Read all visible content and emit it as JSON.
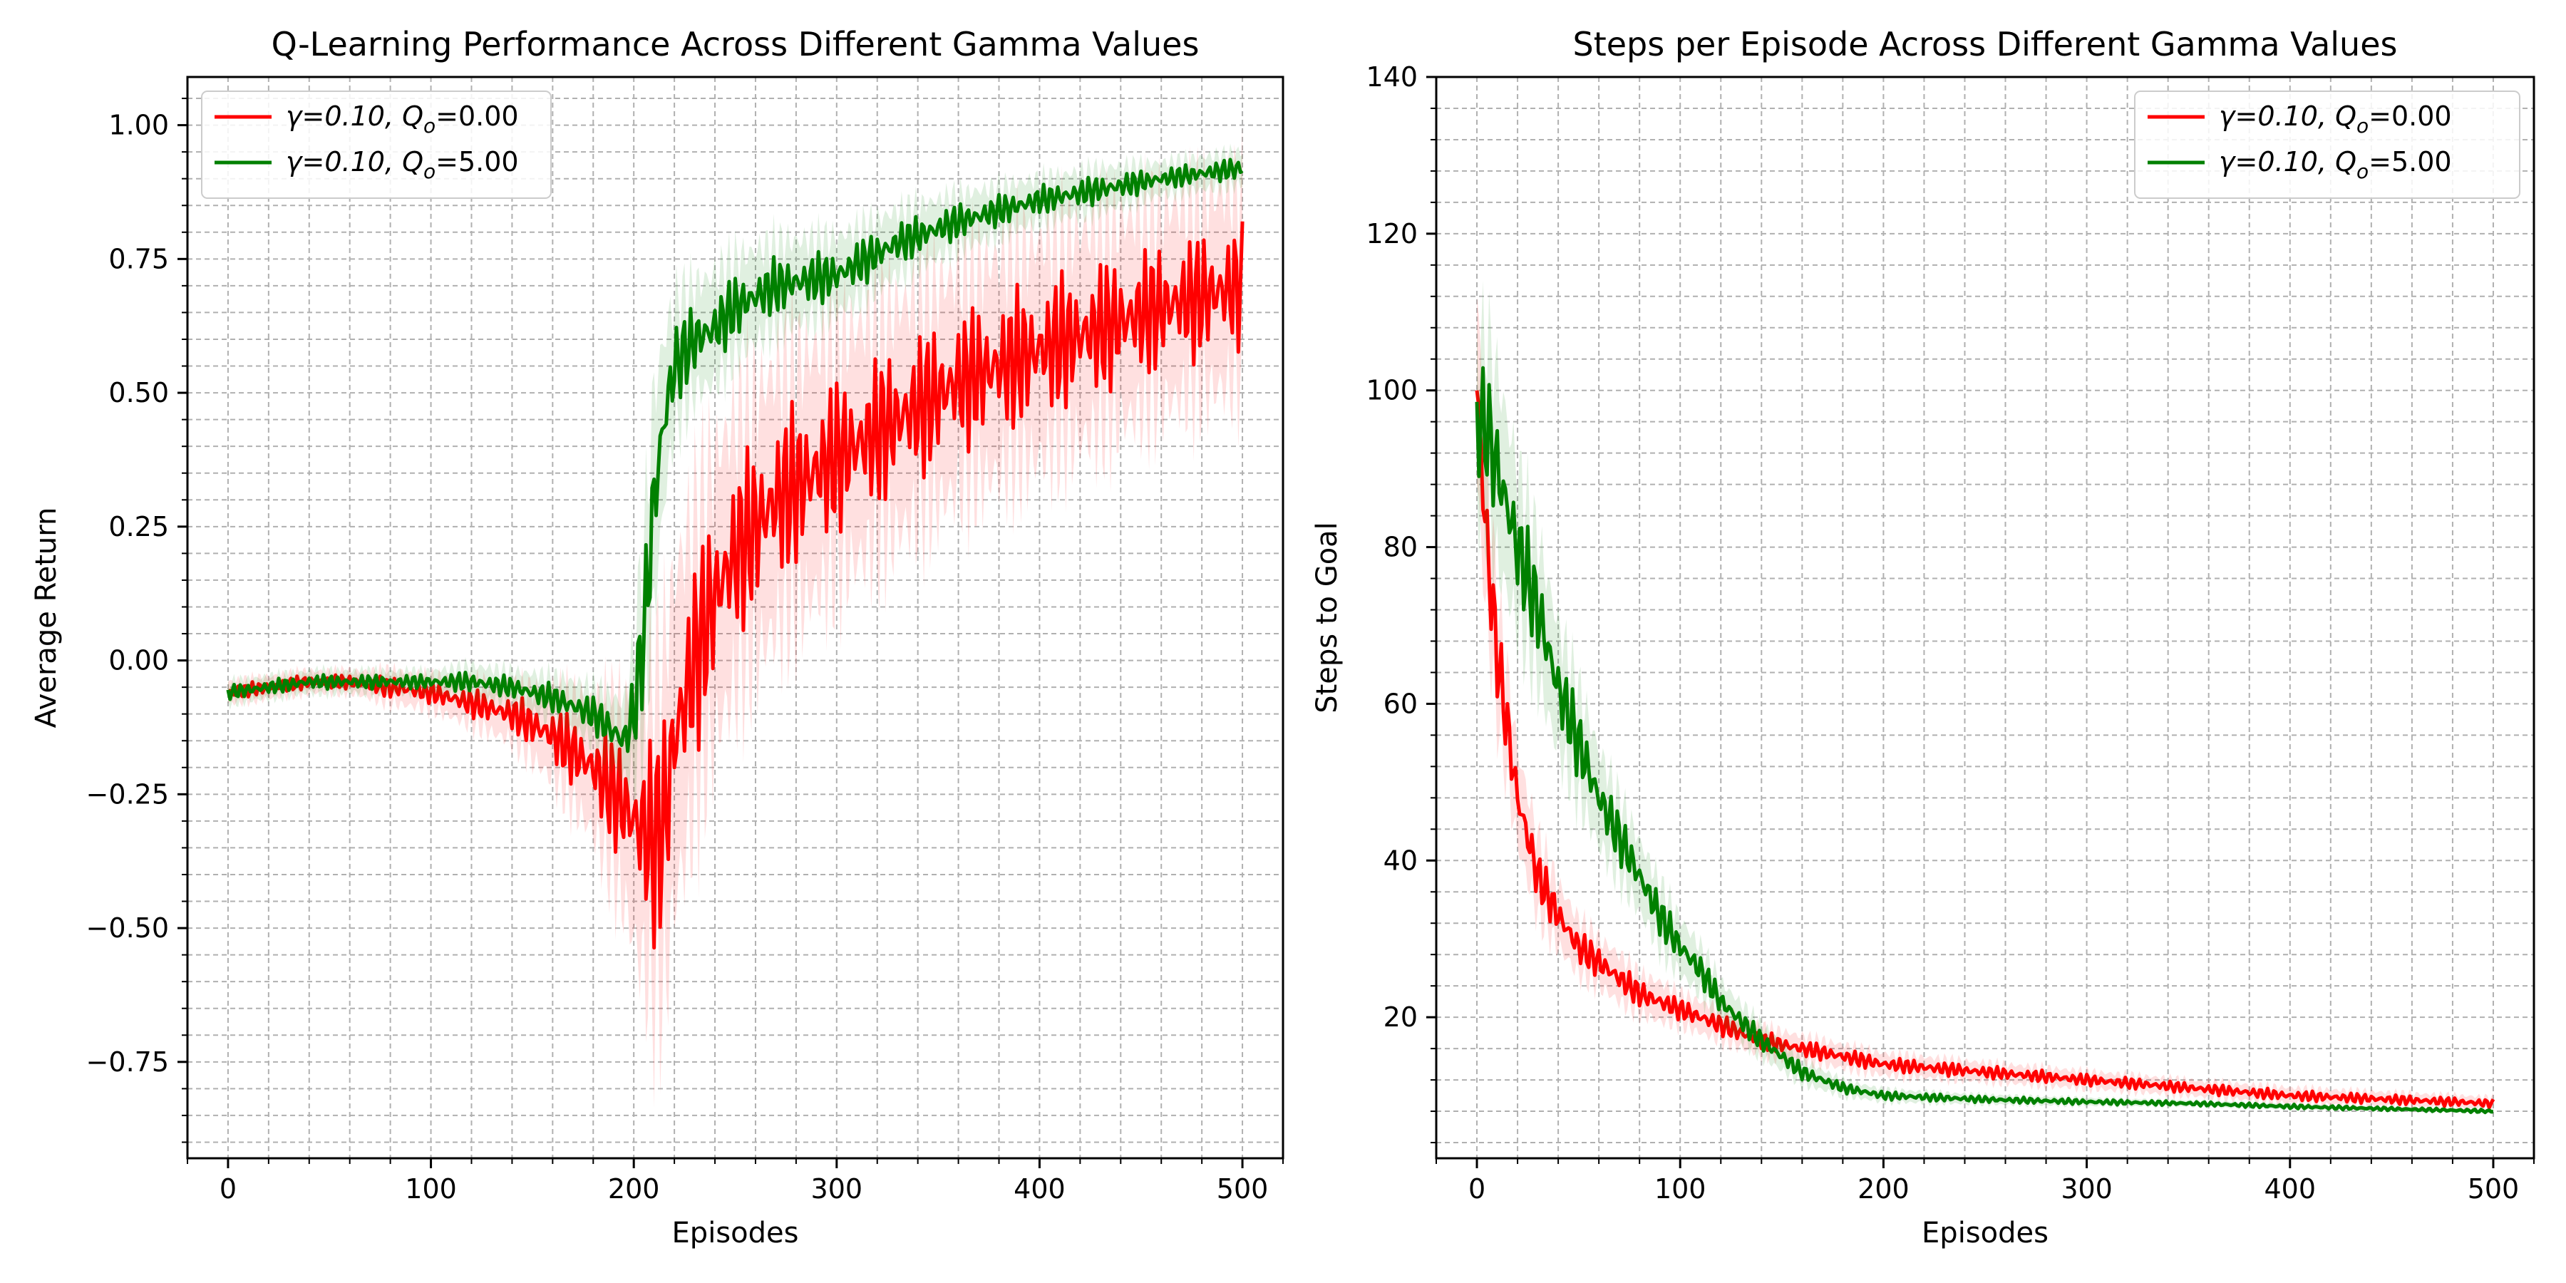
{
  "chart_data": [
    {
      "type": "line",
      "title": "Q-Learning Performance Across Different Gamma Values",
      "xlabel": "Episodes",
      "ylabel": "Average Return",
      "xlim": [
        -20,
        520
      ],
      "ylim": [
        -0.93,
        1.09
      ],
      "xticks": [
        0,
        100,
        200,
        300,
        400,
        500
      ],
      "xtick_labels": [
        "0",
        "100",
        "200",
        "300",
        "400",
        "500"
      ],
      "yticks": [
        -0.75,
        -0.5,
        -0.25,
        0.0,
        0.25,
        0.5,
        0.75,
        1.0
      ],
      "ytick_labels": [
        "−0.75",
        "−0.50",
        "−0.25",
        "0.00",
        "0.25",
        "0.50",
        "0.75",
        "1.00"
      ],
      "grid": true,
      "legend_position": "upper-left",
      "x": [
        0,
        20,
        40,
        60,
        80,
        100,
        120,
        140,
        160,
        180,
        195,
        200,
        205,
        210,
        215,
        220,
        230,
        240,
        250,
        270,
        300,
        330,
        360,
        400,
        430,
        460,
        480,
        500
      ],
      "series": [
        {
          "name": "γ=0.10, Q",
          "name_sub": "o",
          "name_suffix": "=0.00",
          "color": "#ff0000",
          "values": [
            -0.06,
            -0.05,
            -0.04,
            -0.04,
            -0.05,
            -0.06,
            -0.08,
            -0.1,
            -0.14,
            -0.2,
            -0.27,
            -0.3,
            -0.32,
            -0.34,
            -0.3,
            -0.15,
            0.0,
            0.12,
            0.2,
            0.3,
            0.38,
            0.45,
            0.52,
            0.58,
            0.62,
            0.66,
            0.68,
            0.7
          ],
          "spread": [
            0.02,
            0.02,
            0.02,
            0.02,
            0.03,
            0.03,
            0.04,
            0.05,
            0.08,
            0.12,
            0.18,
            0.22,
            0.26,
            0.3,
            0.32,
            0.3,
            0.28,
            0.26,
            0.25,
            0.24,
            0.22,
            0.21,
            0.2,
            0.2,
            0.19,
            0.18,
            0.18,
            0.18
          ]
        },
        {
          "name": "γ=0.10, Q",
          "name_sub": "o",
          "name_suffix": "=5.00",
          "color": "#008000",
          "values": [
            -0.06,
            -0.05,
            -0.04,
            -0.04,
            -0.04,
            -0.04,
            -0.04,
            -0.05,
            -0.07,
            -0.1,
            -0.15,
            -0.1,
            0.05,
            0.3,
            0.45,
            0.55,
            0.6,
            0.62,
            0.66,
            0.7,
            0.72,
            0.78,
            0.82,
            0.86,
            0.88,
            0.9,
            0.91,
            0.92
          ],
          "spread": [
            0.02,
            0.02,
            0.02,
            0.02,
            0.02,
            0.02,
            0.03,
            0.03,
            0.04,
            0.05,
            0.07,
            0.12,
            0.18,
            0.2,
            0.15,
            0.12,
            0.1,
            0.1,
            0.09,
            0.08,
            0.07,
            0.06,
            0.05,
            0.04,
            0.04,
            0.03,
            0.03,
            0.03
          ]
        }
      ]
    },
    {
      "type": "line",
      "title": "Steps per Episode Across Different Gamma Values",
      "xlabel": "Episodes",
      "ylabel": "Steps to Goal",
      "xlim": [
        -20,
        520
      ],
      "ylim": [
        2,
        140
      ],
      "xticks": [
        0,
        100,
        200,
        300,
        400,
        500
      ],
      "xtick_labels": [
        "0",
        "100",
        "200",
        "300",
        "400",
        "500"
      ],
      "yticks": [
        20,
        40,
        60,
        80,
        100,
        120,
        140
      ],
      "ytick_labels": [
        "20",
        "40",
        "60",
        "80",
        "100",
        "120",
        "140"
      ],
      "grid": true,
      "legend_position": "upper-right",
      "x": [
        0,
        5,
        10,
        20,
        30,
        40,
        50,
        60,
        70,
        80,
        90,
        100,
        110,
        120,
        140,
        160,
        180,
        200,
        250,
        300,
        350,
        400,
        450,
        500
      ],
      "series": [
        {
          "name": "γ=0.10,  Q",
          "name_sub": "o",
          "name_suffix": "=0.00",
          "color": "#ff0000",
          "values": [
            100,
            80,
            66,
            48,
            38,
            33,
            29,
            27,
            25,
            23,
            22,
            21,
            20,
            19,
            17,
            16,
            15,
            14,
            13,
            12,
            11,
            10,
            9.5,
            9
          ],
          "spread": [
            12,
            10,
            8,
            6,
            5,
            4,
            3.5,
            3,
            3,
            2.5,
            2.5,
            2,
            2,
            2,
            1.8,
            1.6,
            1.5,
            1.4,
            1.2,
            1.1,
            1,
            1,
            0.9,
            0.8
          ]
        },
        {
          "name": "γ=0.10,  Q",
          "name_sub": "o",
          "name_suffix": "=5.00",
          "color": "#008000",
          "values": [
            96,
            95,
            90,
            80,
            72,
            62,
            55,
            48,
            43,
            38,
            33,
            29,
            26,
            22,
            17,
            13,
            11,
            10,
            9.5,
            9.2,
            9,
            8.6,
            8.3,
            8
          ],
          "spread": [
            10,
            12,
            12,
            10,
            9,
            8,
            7,
            6,
            5,
            4.5,
            4,
            3.5,
            3,
            2.5,
            2,
            1.5,
            1,
            0.8,
            0.6,
            0.5,
            0.4,
            0.4,
            0.3,
            0.3
          ]
        }
      ]
    }
  ]
}
